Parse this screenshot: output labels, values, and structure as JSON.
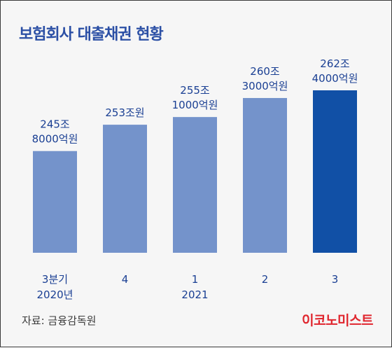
{
  "title": "보험회사 대출채권 현황",
  "source": "자료: 금융감독원",
  "brand": "이코노미스트",
  "colors": {
    "bar": "#7493cb",
    "bar_highlight": "#1150a6",
    "label": "#1a3f93",
    "axis_text": "#1a3f93",
    "background": "#f6f6f6"
  },
  "chart_data": {
    "type": "bar",
    "unit": "조원",
    "categories": [
      "3분기 2020년",
      "4",
      "1 2021",
      "2",
      "3"
    ],
    "category_lines": [
      [
        "3분기",
        "2020년"
      ],
      [
        "4"
      ],
      [
        "1",
        "2021"
      ],
      [
        "2"
      ],
      [
        "3"
      ]
    ],
    "values": [
      245.8,
      253,
      255.1,
      260.3,
      262.4
    ],
    "data_labels": [
      [
        "245조",
        "8000억원"
      ],
      [
        "253조원"
      ],
      [
        "255조",
        "1000억원"
      ],
      [
        "260조",
        "3000억원"
      ],
      [
        "262조",
        "4000억원"
      ]
    ],
    "highlight_index": 4,
    "grid": false,
    "legend": "none"
  }
}
